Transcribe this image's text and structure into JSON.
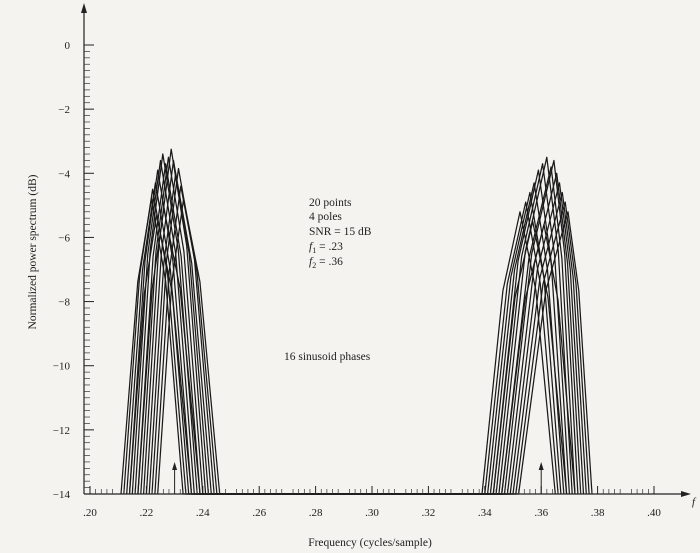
{
  "chart_data": {
    "type": "line",
    "xlabel": "Frequency (cycles/sample)",
    "ylabel": "Normalized power spectrum (dB)",
    "x_axis_symbol": "f",
    "xlim": [
      0.2,
      0.4
    ],
    "ylim": [
      -14,
      0
    ],
    "x_ticks": [
      ".20",
      ".22",
      ".24",
      ".26",
      ".28",
      ".30",
      ".32",
      ".34",
      ".36",
      ".38",
      ".40"
    ],
    "y_ticks": [
      "0",
      "−2",
      "−4",
      "−6",
      "−8",
      "−10",
      "−12",
      "−14"
    ],
    "true_frequencies": [
      0.23,
      0.36
    ],
    "annotations": {
      "lines": [
        "20 points",
        "4 poles",
        "SNR = 15 dB"
      ],
      "f1_symbol": "f",
      "f1_sub": "1",
      "f1_value": " = .23",
      "f2_symbol": "f",
      "f2_sub": "2",
      "f2_value": " = .36",
      "phases": "16 sinusoid phases"
    },
    "series": [
      {
        "values": [
          [
            0.211,
            -14
          ],
          [
            0.2218,
            -4.8
          ],
          [
            0.233,
            -14
          ],
          [
            0.339,
            -14
          ],
          [
            0.3525,
            -5.2
          ],
          [
            0.365,
            -14
          ]
        ]
      },
      {
        "values": [
          [
            0.212,
            -14
          ],
          [
            0.2222,
            -4.5
          ],
          [
            0.234,
            -14
          ],
          [
            0.34,
            -14
          ],
          [
            0.3545,
            -4.9
          ],
          [
            0.366,
            -14
          ]
        ]
      },
      {
        "values": [
          [
            0.213,
            -14
          ],
          [
            0.2232,
            -4.3
          ],
          [
            0.235,
            -14
          ],
          [
            0.341,
            -14
          ],
          [
            0.356,
            -4.6
          ],
          [
            0.367,
            -14
          ]
        ]
      },
      {
        "values": [
          [
            0.214,
            -14
          ],
          [
            0.224,
            -3.9
          ],
          [
            0.236,
            -14
          ],
          [
            0.342,
            -14
          ],
          [
            0.3575,
            -4.3
          ],
          [
            0.368,
            -14
          ]
        ]
      },
      {
        "values": [
          [
            0.215,
            -14
          ],
          [
            0.225,
            -3.6
          ],
          [
            0.237,
            -14
          ],
          [
            0.343,
            -14
          ],
          [
            0.359,
            -3.9
          ],
          [
            0.369,
            -14
          ]
        ]
      },
      {
        "values": [
          [
            0.216,
            -14
          ],
          [
            0.2258,
            -3.4
          ],
          [
            0.238,
            -14
          ],
          [
            0.344,
            -14
          ],
          [
            0.3605,
            -3.7
          ],
          [
            0.37,
            -14
          ]
        ]
      },
      {
        "values": [
          [
            0.217,
            -14
          ],
          [
            0.2268,
            -3.7
          ],
          [
            0.239,
            -14
          ],
          [
            0.345,
            -14
          ],
          [
            0.362,
            -3.5
          ],
          [
            0.371,
            -14
          ]
        ]
      },
      {
        "values": [
          [
            0.218,
            -14
          ],
          [
            0.2278,
            -3.5
          ],
          [
            0.24,
            -14
          ],
          [
            0.346,
            -14
          ],
          [
            0.3635,
            -3.8
          ],
          [
            0.372,
            -14
          ]
        ]
      },
      {
        "values": [
          [
            0.219,
            -14
          ],
          [
            0.2288,
            -3.25
          ],
          [
            0.241,
            -14
          ],
          [
            0.347,
            -14
          ],
          [
            0.3645,
            -3.6
          ],
          [
            0.373,
            -14
          ]
        ]
      },
      {
        "values": [
          [
            0.22,
            -14
          ],
          [
            0.2296,
            -3.6
          ],
          [
            0.242,
            -14
          ],
          [
            0.348,
            -14
          ],
          [
            0.3655,
            -4.0
          ],
          [
            0.374,
            -14
          ]
        ]
      },
      {
        "values": [
          [
            0.221,
            -14
          ],
          [
            0.2304,
            -4.0
          ],
          [
            0.243,
            -14
          ],
          [
            0.349,
            -14
          ],
          [
            0.3665,
            -4.3
          ],
          [
            0.375,
            -14
          ]
        ]
      },
      {
        "values": [
          [
            0.222,
            -14
          ],
          [
            0.2314,
            -3.85
          ],
          [
            0.244,
            -14
          ],
          [
            0.35,
            -14
          ],
          [
            0.3675,
            -4.6
          ],
          [
            0.376,
            -14
          ]
        ]
      },
      {
        "values": [
          [
            0.223,
            -14
          ],
          [
            0.2322,
            -4.4
          ],
          [
            0.245,
            -14
          ],
          [
            0.351,
            -14
          ],
          [
            0.3685,
            -4.9
          ],
          [
            0.377,
            -14
          ]
        ]
      },
      {
        "values": [
          [
            0.224,
            -14
          ],
          [
            0.2332,
            -4.8
          ],
          [
            0.246,
            -14
          ],
          [
            0.352,
            -14
          ],
          [
            0.3695,
            -5.2
          ],
          [
            0.378,
            -14
          ]
        ]
      },
      {
        "values": [
          [
            0.214,
            -14
          ],
          [
            0.2236,
            -5.3
          ],
          [
            0.236,
            -14
          ],
          [
            0.343,
            -14
          ],
          [
            0.357,
            -5.5
          ],
          [
            0.369,
            -14
          ]
        ]
      },
      {
        "values": [
          [
            0.217,
            -14
          ],
          [
            0.2262,
            -5.1
          ],
          [
            0.239,
            -14
          ],
          [
            0.346,
            -14
          ],
          [
            0.361,
            -5.6
          ],
          [
            0.372,
            -14
          ]
        ]
      }
    ]
  }
}
